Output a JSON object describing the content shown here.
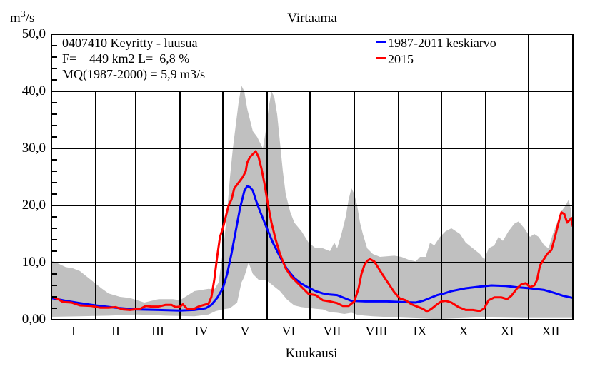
{
  "chart_data": {
    "type": "line",
    "title": "Virtaama",
    "xlabel": "Kuukausi",
    "ylabel": "m3/s",
    "ylabel_main": "m",
    "ylabel_sup": "3",
    "ylabel_tail": "/s",
    "ylim": [
      0,
      50
    ],
    "xlim": [
      0,
      365
    ],
    "grid": true,
    "ytick_labels": [
      {
        "value": 0,
        "label": "0,00"
      },
      {
        "value": 10,
        "label": "10,0"
      },
      {
        "value": 20,
        "label": "20,0"
      },
      {
        "value": 30,
        "label": "30,0"
      },
      {
        "value": 40,
        "label": "40,0"
      },
      {
        "value": 50,
        "label": "50,0"
      }
    ],
    "minor_ytick_step": 2,
    "month_boundaries": [
      0,
      31,
      59,
      90,
      120,
      151,
      181,
      212,
      243,
      273,
      304,
      334,
      365
    ],
    "month_labels": [
      "I",
      "II",
      "III",
      "IV",
      "V",
      "VI",
      "VII",
      "VIII",
      "IX",
      "X",
      "XI",
      "XII"
    ],
    "info_lines": [
      "0407410 Keyritty - luusua",
      "F=    449 km2 L=  6,8 %",
      "MQ(1987-2000) = 5,9 m3/s"
    ],
    "legend_position": "top-right",
    "colors": {
      "mean": "#0000ff",
      "year": "#ff0000",
      "band": "#c0c0c0",
      "axis": "#000000"
    },
    "band": {
      "name": "min-max range",
      "upper": [
        [
          0,
          10.3
        ],
        [
          5,
          9.8
        ],
        [
          10,
          9.2
        ],
        [
          15,
          9.0
        ],
        [
          20,
          8.5
        ],
        [
          25,
          7.5
        ],
        [
          30,
          6.5
        ],
        [
          35,
          5.5
        ],
        [
          40,
          4.6
        ],
        [
          48,
          4.0
        ],
        [
          55,
          3.8
        ],
        [
          60,
          3.4
        ],
        [
          65,
          3.0
        ],
        [
          70,
          3.3
        ],
        [
          75,
          3.6
        ],
        [
          85,
          3.6
        ],
        [
          90,
          3.4
        ],
        [
          95,
          4.2
        ],
        [
          100,
          5.0
        ],
        [
          105,
          5.2
        ],
        [
          110,
          5.4
        ],
        [
          114,
          5.3
        ],
        [
          117,
          6.5
        ],
        [
          119,
          10
        ],
        [
          121,
          14
        ],
        [
          123,
          19
        ],
        [
          125,
          25
        ],
        [
          127,
          30
        ],
        [
          129,
          34
        ],
        [
          131,
          38
        ],
        [
          133,
          41
        ],
        [
          135,
          40
        ],
        [
          137,
          37
        ],
        [
          139,
          35
        ],
        [
          141,
          33
        ],
        [
          144,
          32
        ],
        [
          146,
          31
        ],
        [
          148,
          30
        ],
        [
          150,
          33
        ],
        [
          152,
          37
        ],
        [
          154,
          40
        ],
        [
          156,
          39
        ],
        [
          158,
          36
        ],
        [
          160,
          31
        ],
        [
          162,
          26
        ],
        [
          164,
          22
        ],
        [
          167,
          19
        ],
        [
          170,
          17
        ],
        [
          175,
          15.5
        ],
        [
          180,
          13.5
        ],
        [
          185,
          12.5
        ],
        [
          190,
          12.5
        ],
        [
          195,
          12.0
        ],
        [
          198,
          13.5
        ],
        [
          200,
          12.5
        ],
        [
          203,
          15
        ],
        [
          206,
          18
        ],
        [
          208,
          21
        ],
        [
          210,
          23
        ],
        [
          212,
          22
        ],
        [
          214,
          20
        ],
        [
          216,
          17
        ],
        [
          218,
          15
        ],
        [
          221,
          12.5
        ],
        [
          225,
          11.5
        ],
        [
          230,
          11.0
        ],
        [
          240,
          11.2
        ],
        [
          245,
          11.0
        ],
        [
          250,
          10.5
        ],
        [
          255,
          10.2
        ],
        [
          258,
          11.0
        ],
        [
          262,
          11.0
        ],
        [
          265,
          13.5
        ],
        [
          268,
          13.0
        ],
        [
          272,
          14.5
        ],
        [
          276,
          15.5
        ],
        [
          280,
          16.0
        ],
        [
          283,
          15.5
        ],
        [
          286,
          15.0
        ],
        [
          290,
          13.5
        ],
        [
          295,
          12.5
        ],
        [
          300,
          11.5
        ],
        [
          303,
          10.5
        ],
        [
          306,
          12.5
        ],
        [
          310,
          13.0
        ],
        [
          313,
          14.5
        ],
        [
          316,
          13.8
        ],
        [
          320,
          15.5
        ],
        [
          324,
          16.8
        ],
        [
          327,
          17.2
        ],
        [
          331,
          16.0
        ],
        [
          335,
          14.5
        ],
        [
          338,
          15.0
        ],
        [
          341,
          14.5
        ],
        [
          345,
          13.0
        ],
        [
          348,
          12.5
        ],
        [
          351,
          15
        ],
        [
          354,
          17
        ],
        [
          357,
          19
        ],
        [
          360,
          20
        ],
        [
          362,
          21
        ],
        [
          364,
          19
        ],
        [
          365,
          12
        ]
      ],
      "lower": [
        [
          0,
          0.5
        ],
        [
          20,
          0.6
        ],
        [
          40,
          0.7
        ],
        [
          60,
          0.9
        ],
        [
          80,
          0.7
        ],
        [
          100,
          0.6
        ],
        [
          110,
          0.9
        ],
        [
          115,
          1.5
        ],
        [
          120,
          1.8
        ],
        [
          125,
          2.0
        ],
        [
          130,
          3.0
        ],
        [
          133,
          6.5
        ],
        [
          135,
          7.5
        ],
        [
          138,
          10
        ],
        [
          141,
          8
        ],
        [
          145,
          7
        ],
        [
          150,
          7
        ],
        [
          155,
          6
        ],
        [
          160,
          5.0
        ],
        [
          165,
          3.5
        ],
        [
          170,
          2.5
        ],
        [
          175,
          2.2
        ],
        [
          185,
          1.9
        ],
        [
          190,
          1.8
        ],
        [
          195,
          1.3
        ],
        [
          200,
          1.2
        ],
        [
          205,
          1.0
        ],
        [
          210,
          1.2
        ],
        [
          215,
          0.8
        ],
        [
          225,
          0.6
        ],
        [
          240,
          0.4
        ],
        [
          260,
          0.2
        ],
        [
          270,
          0.1
        ],
        [
          290,
          0.3
        ],
        [
          300,
          0.4
        ],
        [
          330,
          0.3
        ],
        [
          365,
          0.3
        ]
      ]
    },
    "series": [
      {
        "name": "1987-2011 keskiarvo",
        "color": "#0000ff",
        "points": [
          [
            0,
            3.8
          ],
          [
            10,
            3.3
          ],
          [
            20,
            2.9
          ],
          [
            31,
            2.5
          ],
          [
            45,
            2.1
          ],
          [
            59,
            1.8
          ],
          [
            75,
            1.7
          ],
          [
            90,
            1.6
          ],
          [
            100,
            1.7
          ],
          [
            108,
            2.0
          ],
          [
            112,
            2.6
          ],
          [
            116,
            3.8
          ],
          [
            120,
            5.5
          ],
          [
            123,
            8
          ],
          [
            126,
            11.5
          ],
          [
            129,
            15.5
          ],
          [
            132,
            19.5
          ],
          [
            135,
            22.5
          ],
          [
            137,
            23.4
          ],
          [
            139,
            23.2
          ],
          [
            141,
            22.6
          ],
          [
            143,
            21
          ],
          [
            146,
            19
          ],
          [
            150,
            16.5
          ],
          [
            155,
            13.5
          ],
          [
            160,
            11
          ],
          [
            165,
            8.8
          ],
          [
            170,
            7.3
          ],
          [
            175,
            6.3
          ],
          [
            180,
            5.6
          ],
          [
            185,
            5.0
          ],
          [
            190,
            4.6
          ],
          [
            195,
            4.4
          ],
          [
            200,
            4.3
          ],
          [
            205,
            3.8
          ],
          [
            210,
            3.3
          ],
          [
            220,
            3.2
          ],
          [
            235,
            3.2
          ],
          [
            245,
            3.1
          ],
          [
            255,
            3.0
          ],
          [
            260,
            3.3
          ],
          [
            265,
            3.8
          ],
          [
            270,
            4.3
          ],
          [
            275,
            4.6
          ],
          [
            280,
            5.0
          ],
          [
            290,
            5.5
          ],
          [
            300,
            5.8
          ],
          [
            308,
            6.0
          ],
          [
            318,
            5.9
          ],
          [
            325,
            5.7
          ],
          [
            335,
            5.5
          ],
          [
            345,
            5.2
          ],
          [
            352,
            4.7
          ],
          [
            358,
            4.2
          ],
          [
            365,
            3.8
          ]
        ]
      },
      {
        "name": "2015",
        "color": "#ff0000",
        "points": [
          [
            0,
            4.0
          ],
          [
            4,
            3.7
          ],
          [
            8,
            3.1
          ],
          [
            14,
            3.0
          ],
          [
            20,
            2.5
          ],
          [
            28,
            2.4
          ],
          [
            34,
            2.1
          ],
          [
            40,
            2.1
          ],
          [
            45,
            2.2
          ],
          [
            50,
            1.8
          ],
          [
            55,
            1.7
          ],
          [
            62,
            1.9
          ],
          [
            66,
            2.4
          ],
          [
            70,
            2.3
          ],
          [
            75,
            2.3
          ],
          [
            80,
            2.6
          ],
          [
            84,
            2.6
          ],
          [
            87,
            2.2
          ],
          [
            90,
            2.3
          ],
          [
            92,
            2.7
          ],
          [
            95,
            1.9
          ],
          [
            99,
            1.8
          ],
          [
            103,
            2.3
          ],
          [
            107,
            2.6
          ],
          [
            110,
            2.8
          ],
          [
            112,
            4.0
          ],
          [
            114,
            7.0
          ],
          [
            116,
            11
          ],
          [
            118,
            14.5
          ],
          [
            120,
            16
          ],
          [
            122,
            18
          ],
          [
            124,
            20
          ],
          [
            126,
            21
          ],
          [
            128,
            23
          ],
          [
            131,
            24
          ],
          [
            134,
            25
          ],
          [
            136,
            26
          ],
          [
            137,
            27.5
          ],
          [
            139,
            28.5
          ],
          [
            141,
            29
          ],
          [
            143,
            29.5
          ],
          [
            145,
            28.5
          ],
          [
            147,
            26.5
          ],
          [
            149,
            24
          ],
          [
            151,
            21
          ],
          [
            154,
            17
          ],
          [
            157,
            14
          ],
          [
            160,
            11.5
          ],
          [
            164,
            9
          ],
          [
            168,
            7.5
          ],
          [
            172,
            6.5
          ],
          [
            176,
            5.5
          ],
          [
            180,
            4.5
          ],
          [
            185,
            4.3
          ],
          [
            190,
            3.4
          ],
          [
            195,
            3.2
          ],
          [
            200,
            2.9
          ],
          [
            204,
            2.4
          ],
          [
            208,
            2.4
          ],
          [
            212,
            3.2
          ],
          [
            215,
            5.5
          ],
          [
            217,
            8.0
          ],
          [
            219,
            9.5
          ],
          [
            221,
            10.3
          ],
          [
            223,
            10.6
          ],
          [
            226,
            10.2
          ],
          [
            229,
            9.0
          ],
          [
            232,
            7.8
          ],
          [
            236,
            6.3
          ],
          [
            240,
            4.8
          ],
          [
            244,
            3.7
          ],
          [
            248,
            3.4
          ],
          [
            252,
            2.7
          ],
          [
            256,
            2.3
          ],
          [
            260,
            1.9
          ],
          [
            263,
            1.4
          ],
          [
            266,
            1.9
          ],
          [
            270,
            2.7
          ],
          [
            273,
            3.2
          ],
          [
            276,
            3.3
          ],
          [
            280,
            3.0
          ],
          [
            285,
            2.2
          ],
          [
            290,
            1.7
          ],
          [
            295,
            1.7
          ],
          [
            300,
            1.5
          ],
          [
            303,
            2.0
          ],
          [
            306,
            3.4
          ],
          [
            310,
            3.9
          ],
          [
            315,
            3.9
          ],
          [
            319,
            3.6
          ],
          [
            322,
            4.2
          ],
          [
            326,
            5.5
          ],
          [
            329,
            6.2
          ],
          [
            332,
            6.4
          ],
          [
            335,
            5.7
          ],
          [
            338,
            6.0
          ],
          [
            340,
            7.0
          ],
          [
            342,
            9.5
          ],
          [
            344,
            10.3
          ],
          [
            347,
            11.5
          ],
          [
            350,
            12.2
          ],
          [
            352,
            14
          ],
          [
            354,
            16
          ],
          [
            356,
            18
          ],
          [
            357,
            18.8
          ],
          [
            359,
            18.5
          ],
          [
            361,
            17
          ],
          [
            363,
            17.5
          ],
          [
            364,
            17.8
          ],
          [
            365,
            16.3
          ]
        ]
      }
    ]
  }
}
